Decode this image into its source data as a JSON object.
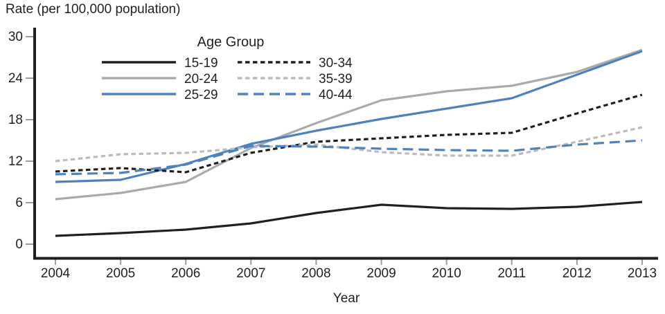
{
  "page": {
    "title": "Rate (per 100,000 population)"
  },
  "chart_data": {
    "type": "line",
    "title": "Rate (per 100,000 population)",
    "xlabel": "Year",
    "ylabel": "Rate (per 100,000 population)",
    "x": [
      2004,
      2005,
      2006,
      2007,
      2008,
      2009,
      2010,
      2011,
      2012,
      2013
    ],
    "xlim": [
      2004,
      2013
    ],
    "ylim": [
      0,
      30
    ],
    "yticks": [
      0,
      6,
      12,
      18,
      24,
      30
    ],
    "grid": false,
    "legend": {
      "title": "Age Group",
      "position": "top-center-inside",
      "columns": 2
    },
    "colors": {
      "black": "#231f20",
      "gray": "#a8aaad",
      "gray_dashed": "#b9bbbd",
      "blue": "#4f81bd",
      "axis": "#231f20",
      "tick": "#9b9da0"
    },
    "series": [
      {
        "name": "15-19",
        "color": "#231f20",
        "style": "solid",
        "values": [
          1.2,
          1.6,
          2.1,
          3.0,
          4.5,
          5.7,
          5.2,
          5.1,
          5.4,
          6.1
        ]
      },
      {
        "name": "20-24",
        "color": "#a8aaad",
        "style": "solid",
        "values": [
          6.5,
          7.4,
          9.0,
          13.9,
          17.5,
          20.8,
          22.1,
          22.9,
          24.9,
          28.1
        ]
      },
      {
        "name": "25-29",
        "color": "#4f81bd",
        "style": "solid",
        "values": [
          9.0,
          9.3,
          11.6,
          14.5,
          16.4,
          18.1,
          19.6,
          21.1,
          24.5,
          27.9
        ]
      },
      {
        "name": "30-34",
        "color": "#231f20",
        "style": "dashed",
        "values": [
          10.5,
          11.0,
          10.4,
          13.2,
          14.8,
          15.3,
          15.8,
          16.1,
          18.9,
          21.6
        ]
      },
      {
        "name": "35-39",
        "color": "#b9bbbd",
        "style": "dashed",
        "values": [
          12.0,
          13.0,
          13.2,
          14.0,
          14.4,
          13.3,
          12.8,
          12.8,
          14.8,
          16.9
        ]
      },
      {
        "name": "40-44",
        "color": "#4f81bd",
        "style": "long-dash",
        "values": [
          10.1,
          10.3,
          11.5,
          14.2,
          14.1,
          13.8,
          13.6,
          13.5,
          14.4,
          15.0
        ]
      }
    ]
  }
}
